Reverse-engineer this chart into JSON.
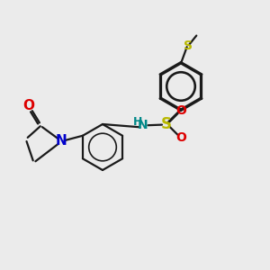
{
  "bg_color": "#ebebeb",
  "bond_color": "#1a1a1a",
  "bond_width": 1.6,
  "S_color": "#b8b800",
  "N_color": "#0000cc",
  "O_color": "#dd0000",
  "NH_color": "#008888",
  "figsize": [
    3.0,
    3.0
  ],
  "dpi": 100,
  "xlim": [
    0,
    10
  ],
  "ylim": [
    0,
    10
  ]
}
